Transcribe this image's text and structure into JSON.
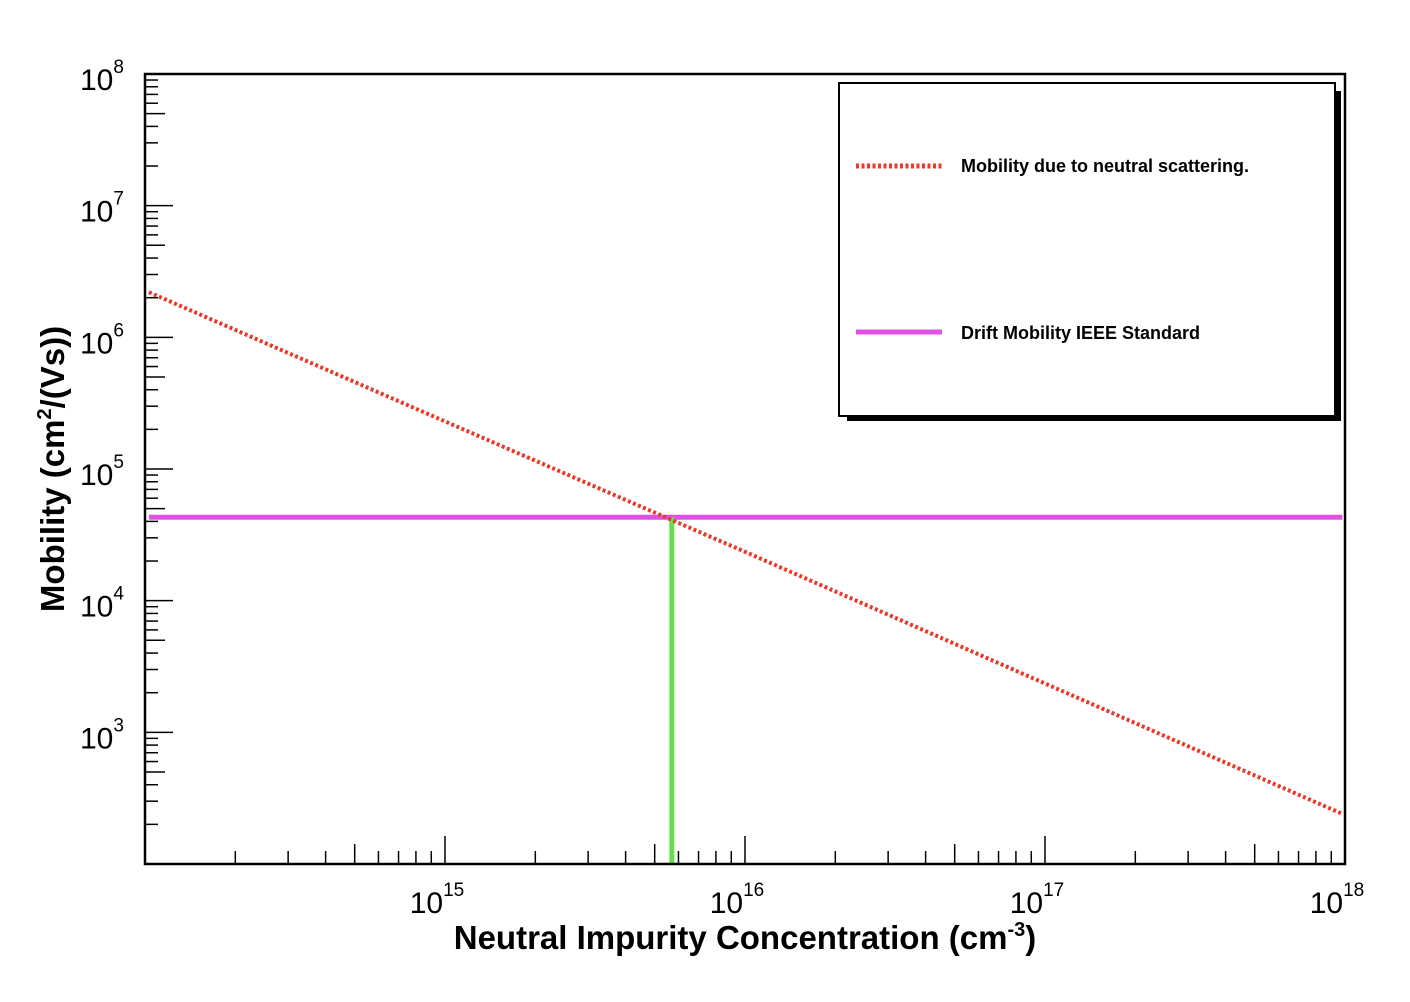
{
  "chart_data": {
    "type": "line",
    "x_scale": "log",
    "y_scale": "log",
    "xlim": [
      100000000000000.0,
      1e+18
    ],
    "ylim": [
      100,
      100000000.0
    ],
    "xlabel": {
      "main": "Neutral Impurity Concentration (cm",
      "sup": "-3",
      "end": ")"
    },
    "ylabel": {
      "main": "Mobility (cm",
      "sup": "2",
      "end": "/(Vs))"
    },
    "x_ticks": [
      {
        "base": "10",
        "exp": "15"
      },
      {
        "base": "10",
        "exp": "16"
      },
      {
        "base": "10",
        "exp": "17"
      },
      {
        "base": "10",
        "exp": "18"
      }
    ],
    "y_ticks": [
      {
        "base": "10",
        "exp": "3"
      },
      {
        "base": "10",
        "exp": "4"
      },
      {
        "base": "10",
        "exp": "5"
      },
      {
        "base": "10",
        "exp": "6"
      },
      {
        "base": "10",
        "exp": "7"
      },
      {
        "base": "10",
        "exp": "8"
      }
    ],
    "series": [
      {
        "name": "Mobility due to neutral scattering.",
        "color": "#e8392a",
        "style": "dotted",
        "x": [
          103000000000000.0,
          1000000000000000.0,
          5700000000000000.0,
          1e+16,
          1e+17,
          9.8e+17
        ],
        "y": [
          2200000.0,
          230000.0,
          41000.0,
          23500.0,
          2350.0,
          240
        ]
      },
      {
        "name": "Drift Mobility IEEE Standard",
        "color": "#e050e6",
        "style": "solid",
        "x": [
          103000000000000.0,
          9.8e+17
        ],
        "y": [
          43000.0,
          43000.0
        ]
      },
      {
        "color": "#66e04a",
        "style": "solid",
        "x": [
          5700000000000000.0,
          5700000000000000.0
        ],
        "y": [
          100,
          43000.0
        ]
      }
    ],
    "grid": false,
    "legend_position": "top-right"
  }
}
